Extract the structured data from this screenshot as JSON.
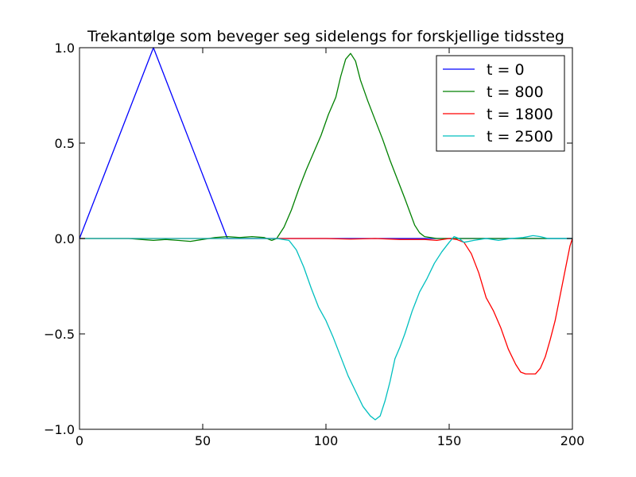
{
  "chart_data": {
    "type": "line",
    "title": "Trekantølge som beveger seg sidelengs for forskjellige tidssteg",
    "xlabel": "",
    "ylabel": "",
    "xlim": [
      0,
      200
    ],
    "ylim": [
      -1.0,
      1.0
    ],
    "x_ticks": [
      0,
      50,
      100,
      150,
      200
    ],
    "y_ticks": [
      -1.0,
      -0.5,
      0.0,
      0.5,
      1.0
    ],
    "x_tick_labels": [
      "0",
      "50",
      "100",
      "150",
      "200"
    ],
    "y_tick_labels": [
      "−1.0",
      "−0.5",
      "0.0",
      "0.5",
      "1.0"
    ],
    "grid": false,
    "legend_position": "top-right",
    "series": [
      {
        "name": "t = 0",
        "color": "#0000ff",
        "points": [
          [
            0,
            0
          ],
          [
            30,
            1.0
          ],
          [
            60,
            0
          ],
          [
            200,
            0
          ]
        ]
      },
      {
        "name": "t = 800",
        "color": "#008000",
        "points": [
          [
            0,
            0
          ],
          [
            20,
            0
          ],
          [
            25,
            -0.005
          ],
          [
            30,
            -0.01
          ],
          [
            35,
            -0.005
          ],
          [
            40,
            -0.01
          ],
          [
            45,
            -0.015
          ],
          [
            50,
            -0.005
          ],
          [
            55,
            0.005
          ],
          [
            60,
            0.01
          ],
          [
            65,
            0.005
          ],
          [
            70,
            0.01
          ],
          [
            75,
            0.005
          ],
          [
            78,
            -0.01
          ],
          [
            80,
            0.0
          ],
          [
            83,
            0.06
          ],
          [
            86,
            0.15
          ],
          [
            89,
            0.26
          ],
          [
            92,
            0.36
          ],
          [
            95,
            0.45
          ],
          [
            98,
            0.54
          ],
          [
            101,
            0.65
          ],
          [
            104,
            0.74
          ],
          [
            106,
            0.85
          ],
          [
            108,
            0.94
          ],
          [
            110,
            0.97
          ],
          [
            112,
            0.93
          ],
          [
            114,
            0.83
          ],
          [
            117,
            0.72
          ],
          [
            120,
            0.62
          ],
          [
            123,
            0.52
          ],
          [
            126,
            0.41
          ],
          [
            129,
            0.31
          ],
          [
            132,
            0.21
          ],
          [
            134,
            0.14
          ],
          [
            136,
            0.07
          ],
          [
            138,
            0.03
          ],
          [
            140,
            0.01
          ],
          [
            145,
            0.0
          ],
          [
            200,
            0.0
          ]
        ]
      },
      {
        "name": "t = 1800",
        "color": "#ff0000",
        "points": [
          [
            0,
            0
          ],
          [
            100,
            0.0
          ],
          [
            110,
            -0.003
          ],
          [
            120,
            0.0
          ],
          [
            130,
            -0.005
          ],
          [
            140,
            -0.005
          ],
          [
            145,
            -0.01
          ],
          [
            150,
            0.0
          ],
          [
            153,
            -0.005
          ],
          [
            156,
            -0.02
          ],
          [
            159,
            -0.08
          ],
          [
            162,
            -0.18
          ],
          [
            165,
            -0.31
          ],
          [
            168,
            -0.38
          ],
          [
            171,
            -0.47
          ],
          [
            174,
            -0.58
          ],
          [
            177,
            -0.66
          ],
          [
            179,
            -0.7
          ],
          [
            181,
            -0.71
          ],
          [
            183,
            -0.71
          ],
          [
            185,
            -0.71
          ],
          [
            187,
            -0.68
          ],
          [
            189,
            -0.62
          ],
          [
            191,
            -0.53
          ],
          [
            193,
            -0.43
          ],
          [
            195,
            -0.3
          ],
          [
            197,
            -0.17
          ],
          [
            199,
            -0.04
          ],
          [
            200,
            0.0
          ]
        ]
      },
      {
        "name": "t = 2500",
        "color": "#00bfbf",
        "points": [
          [
            0,
            0
          ],
          [
            80,
            0.0
          ],
          [
            85,
            -0.01
          ],
          [
            88,
            -0.06
          ],
          [
            91,
            -0.15
          ],
          [
            94,
            -0.26
          ],
          [
            97,
            -0.36
          ],
          [
            100,
            -0.43
          ],
          [
            103,
            -0.52
          ],
          [
            106,
            -0.62
          ],
          [
            109,
            -0.72
          ],
          [
            112,
            -0.8
          ],
          [
            115,
            -0.88
          ],
          [
            118,
            -0.93
          ],
          [
            120,
            -0.95
          ],
          [
            122,
            -0.93
          ],
          [
            124,
            -0.85
          ],
          [
            126,
            -0.75
          ],
          [
            128,
            -0.63
          ],
          [
            130,
            -0.57
          ],
          [
            132,
            -0.5
          ],
          [
            135,
            -0.38
          ],
          [
            138,
            -0.28
          ],
          [
            141,
            -0.21
          ],
          [
            144,
            -0.13
          ],
          [
            147,
            -0.07
          ],
          [
            150,
            -0.02
          ],
          [
            152,
            0.01
          ],
          [
            154,
            0.0
          ],
          [
            156,
            -0.02
          ],
          [
            160,
            -0.01
          ],
          [
            165,
            0.0
          ],
          [
            170,
            -0.01
          ],
          [
            175,
            0.0
          ],
          [
            180,
            0.005
          ],
          [
            184,
            0.015
          ],
          [
            187,
            0.01
          ],
          [
            190,
            0.0
          ],
          [
            200,
            0.0
          ]
        ]
      }
    ]
  }
}
